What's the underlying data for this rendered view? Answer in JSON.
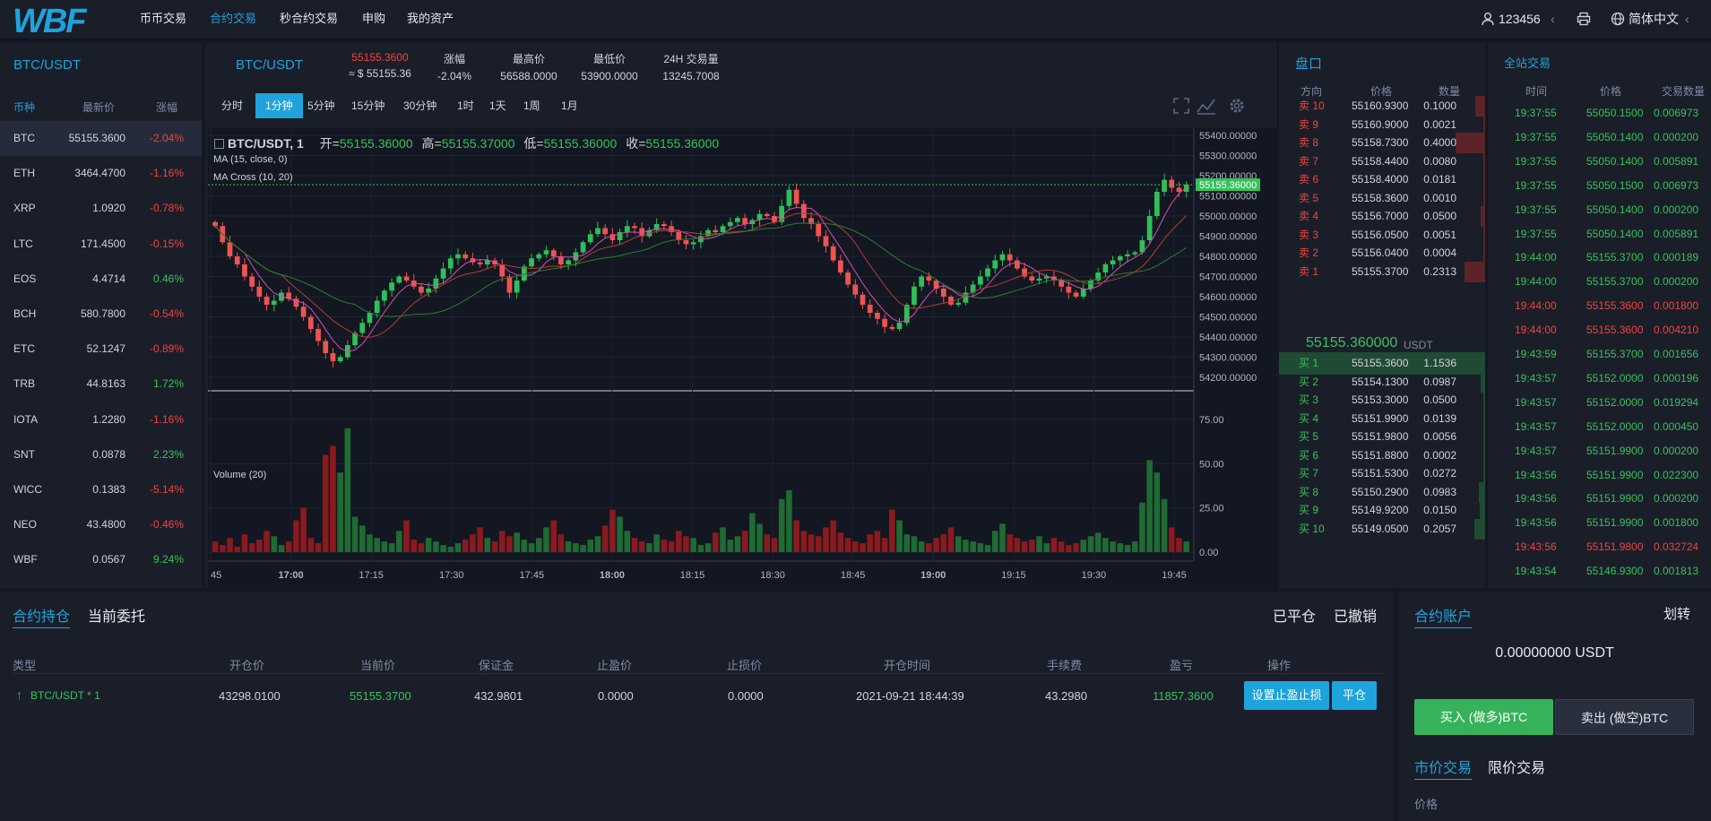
{
  "nav": {
    "logo": "WBF",
    "items": [
      "币币交易",
      "合约交易",
      "秒合约交易",
      "申购",
      "我的资产"
    ],
    "active": 1
  },
  "user": {
    "name": "123456",
    "lang": "简体中文"
  },
  "colors": {
    "accent": "#1fa3dc",
    "up": "#36c25b",
    "down": "#f0433e",
    "bg": "#131722",
    "panel": "#1a1e29"
  },
  "market": {
    "title": "BTC/USDT",
    "headers": [
      "币种",
      "最新价",
      "涨幅"
    ],
    "rows": [
      {
        "name": "BTC",
        "price": "55155.3600",
        "change": "-2.04%",
        "dir": "down"
      },
      {
        "name": "ETH",
        "price": "3464.4700",
        "change": "-1.16%",
        "dir": "down"
      },
      {
        "name": "XRP",
        "price": "1.0920",
        "change": "-0.78%",
        "dir": "down"
      },
      {
        "name": "LTC",
        "price": "171.4500",
        "change": "-0.15%",
        "dir": "down"
      },
      {
        "name": "EOS",
        "price": "4.4714",
        "change": "0.46%",
        "dir": "up"
      },
      {
        "name": "BCH",
        "price": "580.7800",
        "change": "-0.54%",
        "dir": "down"
      },
      {
        "name": "ETC",
        "price": "52.1247",
        "change": "-0.89%",
        "dir": "down"
      },
      {
        "name": "TRB",
        "price": "44.8163",
        "change": "1.72%",
        "dir": "up"
      },
      {
        "name": "IOTA",
        "price": "1.2280",
        "change": "-1.16%",
        "dir": "down"
      },
      {
        "name": "SNT",
        "price": "0.0878",
        "change": "2.23%",
        "dir": "up"
      },
      {
        "name": "WICC",
        "price": "0.1383",
        "change": "-5.14%",
        "dir": "down"
      },
      {
        "name": "NEO",
        "price": "43.4800",
        "change": "-0.46%",
        "dir": "down"
      },
      {
        "name": "WBF",
        "price": "0.0567",
        "change": "9.24%",
        "dir": "up"
      }
    ]
  },
  "ticker": {
    "pair": "BTC/USDT",
    "price": "55155.3600",
    "price_usd": "≈ $ 55155.36",
    "change_label": "涨幅",
    "change": "-2.04%",
    "high_label": "最高价",
    "high": "56588.0000",
    "low_label": "最低价",
    "low": "53900.0000",
    "vol_label": "24H 交易量",
    "vol": "13245.7008"
  },
  "timeframes": [
    "分时",
    "1分钟",
    "5分钟",
    "15分钟",
    "30分钟",
    "1时",
    "1天",
    "1周",
    "1月"
  ],
  "tf_active": 1,
  "legend": {
    "symbol": "BTC/USDT, 1",
    "open_l": "开=",
    "open": "55155.36000",
    "high_l": "高=",
    "high": "55155.37000",
    "low_l": "低=",
    "low": "55155.36000",
    "close_l": "收=",
    "close": "55155.36000",
    "ma": "MA (15, close, 0)",
    "macross": "MA Cross (10, 20)",
    "volume": "Volume (20)"
  },
  "chart_data": {
    "type": "candlestick",
    "price_ticks": [
      "55400.00000",
      "55300.00000",
      "55200.00000",
      "55100.00000",
      "55000.00000",
      "54900.00000",
      "54800.00000",
      "54700.00000",
      "54600.00000",
      "54500.00000",
      "54400.00000",
      "54300.00000",
      "54200.00000"
    ],
    "price_range": [
      54200,
      55400
    ],
    "last_price": "55155.36000",
    "vol_ticks": [
      "75.00",
      "50.00",
      "25.00",
      "0.00"
    ],
    "vol_range": [
      0,
      75
    ],
    "time_ticks": [
      "45",
      "17:00",
      "17:15",
      "17:30",
      "17:45",
      "18:00",
      "18:15",
      "18:30",
      "18:45",
      "19:00",
      "19:15",
      "19:30",
      "19:45"
    ],
    "closes": [
      54950,
      54870,
      54800,
      54760,
      54700,
      54650,
      54600,
      54560,
      54580,
      54620,
      54590,
      54550,
      54500,
      54440,
      54380,
      54320,
      54280,
      54300,
      54360,
      54420,
      54470,
      54520,
      54580,
      54630,
      54670,
      54700,
      54680,
      54650,
      54620,
      54640,
      54690,
      54740,
      54790,
      54810,
      54790,
      54770,
      54760,
      54780,
      54760,
      54700,
      54620,
      54680,
      54750,
      54790,
      54810,
      54830,
      54800,
      54760,
      54780,
      54820,
      54870,
      54910,
      54940,
      54910,
      54880,
      54920,
      54950,
      54940,
      54900,
      54930,
      54960,
      54950,
      54920,
      54880,
      54860,
      54870,
      54900,
      54930,
      54920,
      54950,
      54970,
      54990,
      54960,
      54980,
      55010,
      55000,
      54970,
      55050,
      55130,
      55060,
      54990,
      54960,
      54900,
      54850,
      54780,
      54720,
      54660,
      54610,
      54560,
      54520,
      54490,
      54450,
      54440,
      54470,
      54560,
      54650,
      54700,
      54680,
      54640,
      54600,
      54560,
      54570,
      54620,
      54660,
      54700,
      54740,
      54780,
      54810,
      54780,
      54740,
      54700,
      54680,
      54690,
      54700,
      54680,
      54650,
      54620,
      54600,
      54640,
      54680,
      54720,
      54760,
      54780,
      54800,
      54810,
      54820,
      54880,
      55000,
      55120,
      55180,
      55140,
      55120,
      55155
    ],
    "volumes": [
      6,
      4,
      8,
      3,
      10,
      5,
      7,
      12,
      9,
      4,
      6,
      18,
      25,
      8,
      5,
      55,
      60,
      45,
      70,
      20,
      15,
      10,
      8,
      6,
      5,
      12,
      18,
      7,
      5,
      8,
      6,
      4,
      3,
      5,
      7,
      10,
      14,
      8,
      6,
      12,
      9,
      11,
      7,
      5,
      8,
      14,
      18,
      10,
      6,
      5,
      4,
      7,
      9,
      15,
      24,
      20,
      12,
      8,
      6,
      5,
      10,
      7,
      6,
      12,
      9,
      8,
      4,
      5,
      11,
      14,
      7,
      9,
      12,
      22,
      16,
      10,
      8,
      30,
      35,
      18,
      12,
      10,
      9,
      14,
      18,
      11,
      8,
      6,
      5,
      10,
      12,
      8,
      24,
      18,
      10,
      9,
      6,
      5,
      8,
      10,
      14,
      9,
      7,
      6,
      5,
      4,
      12,
      16,
      10,
      8,
      6,
      7,
      9,
      5,
      8,
      6,
      4,
      5,
      7,
      9,
      11,
      8,
      6,
      5,
      4,
      6,
      28,
      52,
      45,
      30,
      14,
      8,
      6
    ],
    "ma15": [],
    "ma20": []
  },
  "book": {
    "title": "盘口",
    "headers": [
      "方向",
      "价格",
      "数量"
    ],
    "asks": [
      {
        "side": "卖 10",
        "price": "55160.9300",
        "qty": "0.1000",
        "depth": 0.18
      },
      {
        "side": "卖 9",
        "price": "55160.9000",
        "qty": "0.0021",
        "depth": 0.01
      },
      {
        "side": "卖 8",
        "price": "55158.7300",
        "qty": "0.4000",
        "depth": 0.55
      },
      {
        "side": "卖 7",
        "price": "55158.4400",
        "qty": "0.0080",
        "depth": 0.02
      },
      {
        "side": "卖 6",
        "price": "55158.4000",
        "qty": "0.0181",
        "depth": 0.03
      },
      {
        "side": "卖 5",
        "price": "55158.3600",
        "qty": "0.0010",
        "depth": 0.01
      },
      {
        "side": "卖 4",
        "price": "55156.7000",
        "qty": "0.0500",
        "depth": 0.08
      },
      {
        "side": "卖 3",
        "price": "55156.0500",
        "qty": "0.0051",
        "depth": 0.01
      },
      {
        "side": "卖 2",
        "price": "55156.0400",
        "qty": "0.0004",
        "depth": 0.005
      },
      {
        "side": "卖 1",
        "price": "55155.3700",
        "qty": "0.2313",
        "depth": 0.38
      }
    ],
    "last": "55155.360000",
    "last_unit": "USDT",
    "bids": [
      {
        "side": "买 1",
        "price": "55155.3600",
        "qty": "1.1536",
        "depth": 1.0
      },
      {
        "side": "买 2",
        "price": "55154.1300",
        "qty": "0.0987",
        "depth": 0.08
      },
      {
        "side": "买 3",
        "price": "55153.3000",
        "qty": "0.0500",
        "depth": 0.04
      },
      {
        "side": "买 4",
        "price": "55151.9900",
        "qty": "0.0139",
        "depth": 0.02
      },
      {
        "side": "买 5",
        "price": "55151.9800",
        "qty": "0.0056",
        "depth": 0.01
      },
      {
        "side": "买 6",
        "price": "55151.8800",
        "qty": "0.0002",
        "depth": 0.005
      },
      {
        "side": "买 7",
        "price": "55151.5300",
        "qty": "0.0272",
        "depth": 0.02
      },
      {
        "side": "买 8",
        "price": "55150.2900",
        "qty": "0.0983",
        "depth": 0.12
      },
      {
        "side": "买 9",
        "price": "55149.9200",
        "qty": "0.0150",
        "depth": 0.1
      },
      {
        "side": "买 10",
        "price": "55149.0500",
        "qty": "0.2057",
        "depth": 0.2
      }
    ]
  },
  "trades": {
    "title": "全站交易",
    "headers": [
      "时间",
      "价格",
      "交易数量"
    ],
    "rows": [
      {
        "t": "19:37:55",
        "p": "55050.1500",
        "q": "0.006973",
        "dir": "up"
      },
      {
        "t": "19:37:55",
        "p": "55050.1400",
        "q": "0.000200",
        "dir": "up"
      },
      {
        "t": "19:37:55",
        "p": "55050.1400",
        "q": "0.005891",
        "dir": "up"
      },
      {
        "t": "19:37:55",
        "p": "55050.1500",
        "q": "0.006973",
        "dir": "up"
      },
      {
        "t": "19:37:55",
        "p": "55050.1400",
        "q": "0.000200",
        "dir": "up"
      },
      {
        "t": "19:37:55",
        "p": "55050.1400",
        "q": "0.005891",
        "dir": "up"
      },
      {
        "t": "19:44:00",
        "p": "55155.3700",
        "q": "0.000189",
        "dir": "up"
      },
      {
        "t": "19:44:00",
        "p": "55155.3700",
        "q": "0.000200",
        "dir": "up"
      },
      {
        "t": "19:44:00",
        "p": "55155.3600",
        "q": "0.001800",
        "dir": "down"
      },
      {
        "t": "19:44:00",
        "p": "55155.3600",
        "q": "0.004210",
        "dir": "down"
      },
      {
        "t": "19:43:59",
        "p": "55155.3700",
        "q": "0.001656",
        "dir": "up"
      },
      {
        "t": "19:43:57",
        "p": "55152.0000",
        "q": "0.000196",
        "dir": "up"
      },
      {
        "t": "19:43:57",
        "p": "55152.0000",
        "q": "0.019294",
        "dir": "up"
      },
      {
        "t": "19:43:57",
        "p": "55152.0000",
        "q": "0.000450",
        "dir": "up"
      },
      {
        "t": "19:43:57",
        "p": "55151.9900",
        "q": "0.000200",
        "dir": "up"
      },
      {
        "t": "19:43:56",
        "p": "55151.9900",
        "q": "0.022300",
        "dir": "up"
      },
      {
        "t": "19:43:56",
        "p": "55151.9900",
        "q": "0.000200",
        "dir": "up"
      },
      {
        "t": "19:43:56",
        "p": "55151.9900",
        "q": "0.001800",
        "dir": "up"
      },
      {
        "t": "19:43:56",
        "p": "55151.9800",
        "q": "0.032724",
        "dir": "down"
      },
      {
        "t": "19:43:54",
        "p": "55146.9300",
        "q": "0.001813",
        "dir": "up"
      }
    ]
  },
  "positions": {
    "tab_active": "合约持仓",
    "tab_other": "当前委托",
    "closed": "已平仓",
    "cancelled": "已撤销",
    "headers": [
      "类型",
      "开仓价",
      "当前价",
      "保证金",
      "止盈价",
      "止损价",
      "开仓时间",
      "手续费",
      "盈亏",
      "操作"
    ],
    "row": {
      "type": "BTC/USDT * 1",
      "open": "43298.0100",
      "current": "55155.3700",
      "margin": "432.9801",
      "tp": "0.0000",
      "sl": "0.0000",
      "time": "2021-09-21 18:44:39",
      "fee": "43.2980",
      "pnl": "11857.3600"
    },
    "btn_tpsl": "设置止盈止损",
    "btn_close": "平仓"
  },
  "account": {
    "title": "合约账户",
    "transfer": "划转",
    "balance": "0.00000000 USDT",
    "buy": "买入 (做多)BTC",
    "sell": "卖出 (做空)BTC",
    "tab_market": "市价交易",
    "tab_limit": "限价交易",
    "price_label": "价格"
  }
}
